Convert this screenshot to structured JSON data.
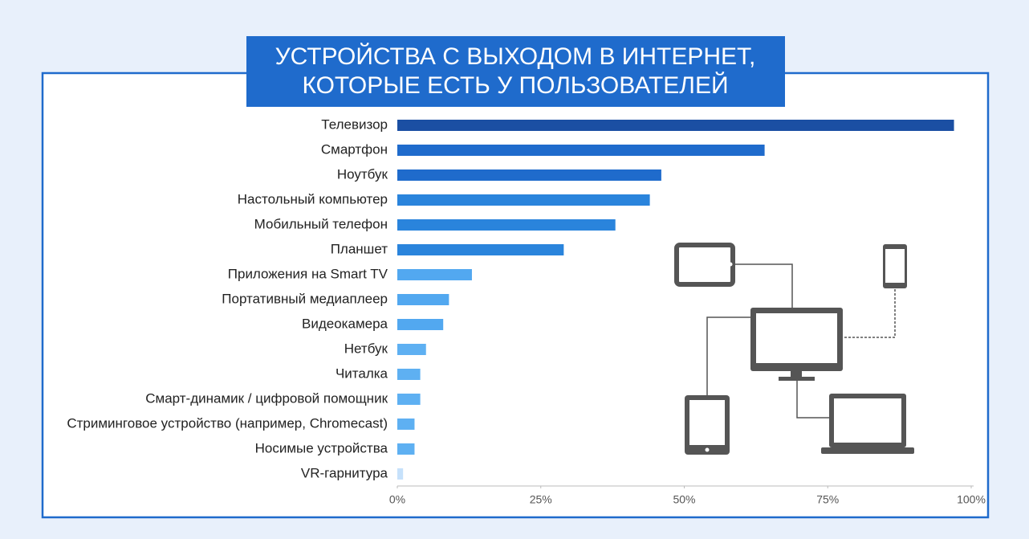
{
  "chart_data": {
    "type": "bar",
    "title": [
      "УСТРОЙСТВА С ВЫХОДОМ В ИНТЕРНЕТ,",
      "КОТОРЫЕ ЕСТЬ У ПОЛЬЗОВАТЕЛЕЙ"
    ],
    "categories": [
      "Телевизор",
      "Смартфон",
      "Ноутбук",
      "Настольный компьютер",
      "Мобильный телефон",
      "Планшет",
      "Приложения на Smart TV",
      "Портативный медиаплеер",
      "Видеокамера",
      "Нетбук",
      "Читалка",
      "Смарт-динамик / цифровой помощник",
      "Стриминговое устройство (например, Chromecast)",
      "Носимые устройства",
      "VR-гарнитура"
    ],
    "values": [
      97,
      64,
      46,
      44,
      38,
      29,
      13,
      9,
      8,
      5,
      4,
      4,
      3,
      3,
      1
    ],
    "colors": [
      "#1b4fa3",
      "#1f6bcc",
      "#1f6bcc",
      "#2a84dc",
      "#2a84dc",
      "#2a84dc",
      "#52a8f0",
      "#52a8f0",
      "#52a8f0",
      "#5eb0f2",
      "#5eb0f2",
      "#5eb0f2",
      "#5eb0f2",
      "#5eb0f2",
      "#c6e1fb"
    ],
    "xlim": [
      0,
      100
    ],
    "xticks": [
      {
        "value": 0,
        "label": "0%"
      },
      {
        "value": 25,
        "label": "25%"
      },
      {
        "value": 50,
        "label": "50%"
      },
      {
        "value": 75,
        "label": "75%"
      },
      {
        "value": 100,
        "label": "100%"
      }
    ]
  }
}
